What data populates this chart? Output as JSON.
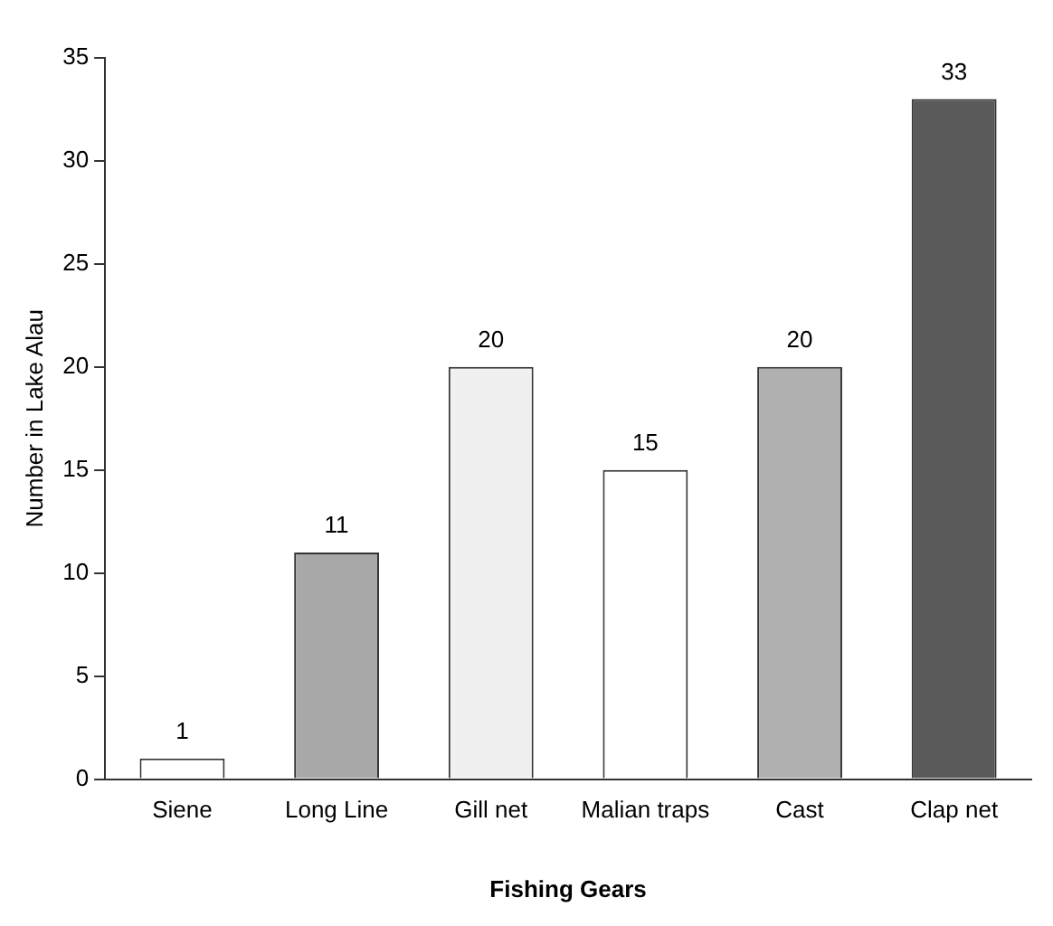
{
  "chart_data": {
    "type": "bar",
    "xlabel": "Fishing Gears",
    "ylabel": "Number in Lake Alau",
    "categories": [
      "Siene",
      "Long Line",
      "Gill net",
      "Malian traps",
      "Cast",
      "Clap net"
    ],
    "values": [
      1,
      11,
      20,
      15,
      20,
      33
    ],
    "colors": [
      "#ffffff",
      "#a8a8a8",
      "#f0f0f0",
      "#ffffff",
      "#b0b0b0",
      "#5a5a5a"
    ],
    "ylim": [
      0,
      35
    ],
    "yticks": [
      0,
      5,
      10,
      15,
      20,
      25,
      30,
      35
    ],
    "grid": false,
    "data_labels": true
  }
}
